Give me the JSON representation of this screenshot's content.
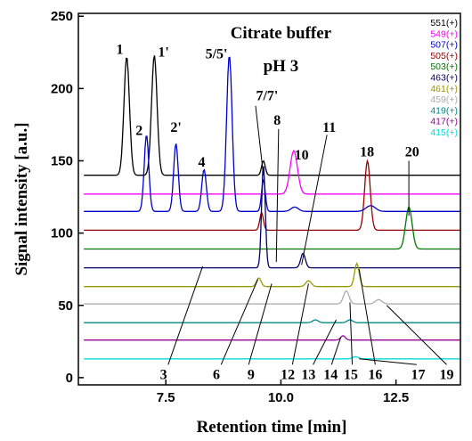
{
  "chart_data": {
    "type": "line",
    "title": "Citrate buffer",
    "subtitle": "pH 3",
    "xlabel": "Retention time  [min]",
    "ylabel": "Signal intensity   [a.u.]",
    "xlim": [
      5.6,
      13.9
    ],
    "ylim": [
      -5,
      252
    ],
    "grid": false,
    "legend_position": "top-right",
    "x_ticks": [
      {
        "value": 7.5,
        "label": "7.5"
      },
      {
        "value": 10.0,
        "label": "10.0"
      },
      {
        "value": 12.5,
        "label": "12.5"
      }
    ],
    "y_ticks": [
      {
        "value": 0,
        "label": "0"
      },
      {
        "value": 50,
        "label": "50"
      },
      {
        "value": 100,
        "label": "100"
      },
      {
        "value": 150,
        "label": "150"
      },
      {
        "value": 200,
        "label": "200"
      },
      {
        "value": 250,
        "label": "250"
      }
    ],
    "series": [
      {
        "name": "551(+)",
        "color": "#000000",
        "baseline": 140,
        "peaks": [
          [
            6.65,
            82,
            0.06
          ],
          [
            7.25,
            83,
            0.06
          ],
          [
            9.62,
            10,
            0.04
          ]
        ]
      },
      {
        "name": "549(+)",
        "color": "#ff00ff",
        "baseline": 127,
        "peaks": [
          [
            10.28,
            30,
            0.08
          ]
        ]
      },
      {
        "name": "507(+)",
        "color": "#0000cc",
        "baseline": 115,
        "peaks": [
          [
            7.08,
            53,
            0.05
          ],
          [
            7.72,
            47,
            0.05
          ],
          [
            8.33,
            29,
            0.05
          ],
          [
            8.88,
            108,
            0.06
          ],
          [
            9.62,
            22,
            0.04
          ],
          [
            10.3,
            3,
            0.08
          ],
          [
            11.95,
            4,
            0.1
          ]
        ]
      },
      {
        "name": "505(+)",
        "color": "#990000",
        "baseline": 102,
        "peaks": [
          [
            9.58,
            12,
            0.04
          ],
          [
            11.88,
            48,
            0.06
          ]
        ]
      },
      {
        "name": "503(+)",
        "color": "#007700",
        "baseline": 89,
        "peaks": [
          [
            12.78,
            29,
            0.07
          ]
        ]
      },
      {
        "name": "463(+)",
        "color": "#000066",
        "baseline": 76,
        "peaks": [
          [
            9.62,
            71,
            0.04
          ],
          [
            10.48,
            10,
            0.05
          ]
        ]
      },
      {
        "name": "461(+)",
        "color": "#999900",
        "baseline": 63,
        "peaks": [
          [
            9.52,
            6,
            0.05
          ],
          [
            10.6,
            4,
            0.06
          ],
          [
            11.65,
            16,
            0.05
          ]
        ]
      },
      {
        "name": "459(+)",
        "color": "#aaaaaa",
        "baseline": 51,
        "peaks": [
          [
            11.42,
            9,
            0.06
          ],
          [
            12.12,
            3,
            0.07
          ]
        ]
      },
      {
        "name": "419(+)",
        "color": "#008888",
        "baseline": 38,
        "peaks": [
          [
            10.75,
            2,
            0.06
          ],
          [
            11.5,
            2,
            0.06
          ]
        ]
      },
      {
        "name": "417(+)",
        "color": "#990099",
        "baseline": 26,
        "peaks": [
          [
            11.35,
            3,
            0.05
          ]
        ]
      },
      {
        "name": "415(+)",
        "color": "#00dddd",
        "baseline": 13,
        "peaks": [
          [
            11.62,
            1.5,
            0.06
          ]
        ]
      }
    ],
    "peak_labels": [
      {
        "text": "1",
        "x": 6.5,
        "y": 224
      },
      {
        "text": "1'",
        "x": 7.45,
        "y": 222
      },
      {
        "text": "2",
        "x": 6.92,
        "y": 168
      },
      {
        "text": "2'",
        "x": 7.72,
        "y": 170
      },
      {
        "text": "4",
        "x": 8.28,
        "y": 146
      },
      {
        "text": "5/5'",
        "x": 8.6,
        "y": 221
      },
      {
        "text": "7/7'",
        "x": 9.7,
        "y": 192
      },
      {
        "text": "8",
        "x": 9.92,
        "y": 175
      },
      {
        "text": "10",
        "x": 10.45,
        "y": 151
      },
      {
        "text": "11",
        "x": 11.05,
        "y": 170
      },
      {
        "text": "18",
        "x": 11.87,
        "y": 153
      },
      {
        "text": "20",
        "x": 12.85,
        "y": 153
      },
      {
        "text": "3",
        "x": 7.45,
        "y": -1
      },
      {
        "text": "6",
        "x": 8.6,
        "y": -1
      },
      {
        "text": "9",
        "x": 9.35,
        "y": -1
      },
      {
        "text": "12",
        "x": 10.15,
        "y": -1
      },
      {
        "text": "13",
        "x": 10.6,
        "y": -1
      },
      {
        "text": "14",
        "x": 11.08,
        "y": -1
      },
      {
        "text": "15",
        "x": 11.52,
        "y": -1
      },
      {
        "text": "16",
        "x": 12.05,
        "y": -1
      },
      {
        "text": "17",
        "x": 12.98,
        "y": -1
      },
      {
        "text": "19",
        "x": 13.6,
        "y": -1
      }
    ],
    "leader_lines": [
      [
        7.55,
        9,
        8.3,
        77
      ],
      [
        8.7,
        9,
        9.5,
        68
      ],
      [
        9.3,
        9,
        9.8,
        65
      ],
      [
        10.25,
        9,
        10.6,
        65
      ],
      [
        10.7,
        9,
        11.2,
        40
      ],
      [
        11.1,
        9,
        11.3,
        28
      ],
      [
        11.55,
        9,
        11.5,
        52
      ],
      [
        12.05,
        9,
        11.7,
        75
      ],
      [
        12.95,
        9,
        11.7,
        13
      ],
      [
        13.6,
        9,
        12.3,
        50
      ],
      [
        10.45,
        78,
        11.0,
        168
      ],
      [
        9.9,
        80,
        9.95,
        172
      ],
      [
        9.62,
        140,
        9.45,
        188
      ],
      [
        12.78,
        112,
        12.78,
        150
      ]
    ]
  }
}
